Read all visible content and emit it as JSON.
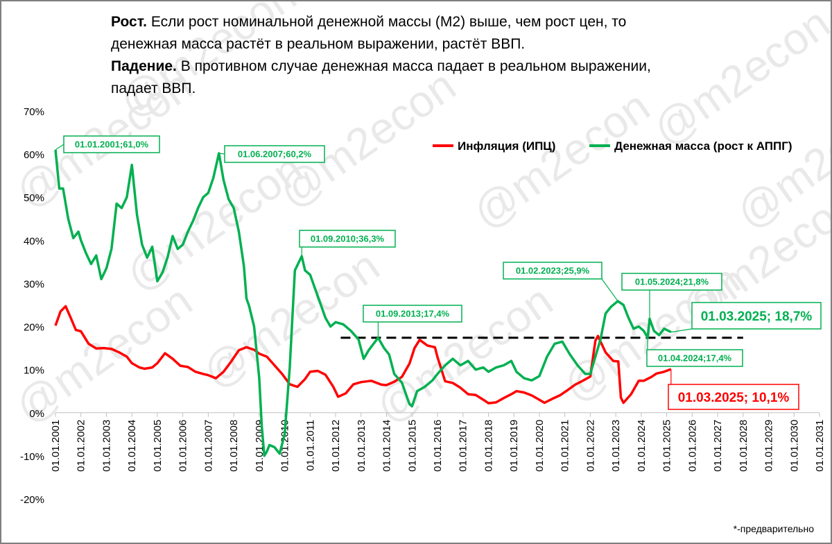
{
  "heading": {
    "line1_bold": "Рост.",
    "line1_text": " Если рост номинальной денежной массы (М2) выше, чем рост цен,  то",
    "line2_text": "денежная масса растёт в реальном выражении, растёт ВВП.",
    "line3_bold": "Падение.",
    "line3_text": " В противном случае денежная масса падает в реальном выражении,",
    "line4_text": "падает ВВП."
  },
  "footnote": "*-предварительно",
  "watermark": "@m2econ",
  "colors": {
    "inflation": "#ff0000",
    "money": "#00b050",
    "threshold": "#000000",
    "grid": "#d9d9d9"
  },
  "chart_data": {
    "type": "line",
    "y_ticks": [
      "70%",
      "60%",
      "50%",
      "40%",
      "30%",
      "20%",
      "10%",
      "0%",
      "-10%",
      "-20%"
    ],
    "y_tick_values": [
      70,
      60,
      50,
      40,
      30,
      20,
      10,
      0,
      -10,
      -20
    ],
    "ylim": [
      -20,
      70
    ],
    "xlim": [
      2001.0,
      2031.0
    ],
    "x_ticks": [
      "01.01.2001",
      "01.01.2002",
      "01.01.2003",
      "01.01.2004",
      "01.01.2005",
      "01.01.2006",
      "01.01.2007",
      "01.01.2008",
      "01.01.2009",
      "01.01.2010",
      "01.01.2011",
      "01.01.2012",
      "01.01.2013",
      "01.01.2014",
      "01.01.2015",
      "01.01.2016",
      "01.01.2017",
      "01.01.2018",
      "01.01.2019",
      "01.01.2020",
      "01.01.2021",
      "01.01.2022",
      "01.01.2023",
      "01.01.2024",
      "01.01.2025",
      "01.01.2026",
      "01.01.2027",
      "01.01.2028",
      "01.01.2029",
      "01.01.2030",
      "01.01.2031"
    ],
    "x_tick_values": [
      2001,
      2002,
      2003,
      2004,
      2005,
      2006,
      2007,
      2008,
      2009,
      2010,
      2011,
      2012,
      2013,
      2014,
      2015,
      2016,
      2017,
      2018,
      2019,
      2020,
      2021,
      2022,
      2023,
      2024,
      2025,
      2026,
      2027,
      2028,
      2029,
      2030,
      2031
    ],
    "legend": {
      "position": "top-right"
    },
    "series": [
      {
        "name": "Инфляция (ИПЦ)",
        "color": "#ff0000",
        "x": [
          2001.0,
          2001.2,
          2001.4,
          2001.6,
          2001.8,
          2002.0,
          2002.3,
          2002.6,
          2002.9,
          2003.2,
          2003.5,
          2003.8,
          2004.0,
          2004.3,
          2004.5,
          2004.8,
          2005.0,
          2005.3,
          2005.6,
          2005.9,
          2006.2,
          2006.5,
          2006.8,
          2007.0,
          2007.3,
          2007.6,
          2007.9,
          2008.2,
          2008.5,
          2008.8,
          2009.0,
          2009.3,
          2009.6,
          2009.9,
          2010.2,
          2010.5,
          2010.8,
          2011.0,
          2011.3,
          2011.6,
          2011.9,
          2012.1,
          2012.4,
          2012.7,
          2013.0,
          2013.4,
          2013.8,
          2014.0,
          2014.3,
          2014.6,
          2014.9,
          2015.1,
          2015.3,
          2015.6,
          2015.9,
          2016.0,
          2016.3,
          2016.6,
          2016.9,
          2017.2,
          2017.5,
          2017.8,
          2018.0,
          2018.3,
          2018.6,
          2018.9,
          2019.1,
          2019.4,
          2019.7,
          2020.0,
          2020.2,
          2020.5,
          2020.8,
          2021.1,
          2021.4,
          2021.7,
          2022.0,
          2022.2,
          2022.3,
          2022.6,
          2022.9,
          2023.1,
          2023.2,
          2023.3,
          2023.6,
          2023.9,
          2024.1,
          2024.4,
          2024.6,
          2024.9,
          2025.17
        ],
        "y": [
          20.2,
          23.5,
          24.7,
          22.0,
          19.2,
          18.9,
          16.0,
          14.9,
          15.0,
          14.8,
          14.0,
          13.0,
          11.5,
          10.5,
          10.2,
          10.5,
          11.5,
          13.8,
          12.5,
          10.9,
          10.6,
          9.5,
          9.0,
          8.7,
          8.0,
          9.5,
          11.9,
          14.5,
          15.2,
          14.6,
          13.7,
          13.0,
          11.0,
          9.0,
          6.6,
          6.0,
          7.8,
          9.5,
          9.7,
          8.8,
          6.1,
          3.7,
          4.5,
          6.6,
          7.1,
          7.4,
          6.5,
          6.4,
          7.2,
          8.3,
          11.4,
          15.0,
          16.9,
          15.6,
          15.2,
          12.9,
          7.3,
          6.9,
          5.8,
          4.3,
          4.1,
          3.0,
          2.2,
          2.4,
          3.4,
          4.3,
          5.0,
          4.7,
          4.0,
          3.0,
          2.3,
          3.2,
          4.0,
          5.2,
          6.5,
          7.4,
          8.4,
          16.7,
          17.8,
          14.0,
          12.0,
          11.9,
          3.5,
          2.3,
          4.3,
          7.4,
          7.4,
          8.3,
          9.1,
          9.5,
          10.1
        ]
      },
      {
        "name": "Денежная масса (рост к АППГ)",
        "color": "#00b050",
        "x": [
          2001.0,
          2001.15,
          2001.3,
          2001.5,
          2001.7,
          2001.9,
          2002.0,
          2002.2,
          2002.4,
          2002.6,
          2002.8,
          2003.0,
          2003.2,
          2003.4,
          2003.6,
          2003.8,
          2004.0,
          2004.2,
          2004.4,
          2004.6,
          2004.8,
          2005.0,
          2005.2,
          2005.4,
          2005.6,
          2005.8,
          2006.0,
          2006.2,
          2006.4,
          2006.6,
          2006.8,
          2007.0,
          2007.2,
          2007.42,
          2007.6,
          2007.8,
          2008.0,
          2008.2,
          2008.4,
          2008.5,
          2008.6,
          2008.8,
          2009.0,
          2009.1,
          2009.2,
          2009.3,
          2009.4,
          2009.6,
          2009.8,
          2010.0,
          2010.2,
          2010.4,
          2010.67,
          2010.8,
          2011.0,
          2011.3,
          2011.6,
          2011.8,
          2012.0,
          2012.3,
          2012.6,
          2012.9,
          2013.1,
          2013.3,
          2013.67,
          2013.9,
          2014.1,
          2014.3,
          2014.6,
          2014.9,
          2015.0,
          2015.2,
          2015.5,
          2015.8,
          2016.0,
          2016.3,
          2016.6,
          2016.9,
          2017.2,
          2017.5,
          2017.8,
          2018.0,
          2018.3,
          2018.6,
          2018.9,
          2019.1,
          2019.4,
          2019.7,
          2020.0,
          2020.3,
          2020.6,
          2020.9,
          2021.2,
          2021.5,
          2021.8,
          2022.0,
          2022.2,
          2022.4,
          2022.6,
          2022.8,
          2023.08,
          2023.3,
          2023.5,
          2023.7,
          2023.9,
          2024.1,
          2024.25,
          2024.33,
          2024.5,
          2024.7,
          2024.9,
          2025.17
        ],
        "y": [
          61.0,
          52.0,
          52.0,
          45.0,
          40.5,
          42.0,
          40.0,
          37.0,
          34.5,
          36.5,
          31.0,
          33.5,
          38.0,
          48.5,
          47.5,
          50.0,
          57.5,
          46.0,
          39.0,
          36.0,
          38.5,
          30.5,
          32.5,
          36.0,
          41.0,
          38.0,
          39.0,
          42.0,
          44.5,
          47.5,
          50.0,
          51.0,
          54.5,
          60.2,
          54.0,
          49.5,
          47.5,
          42.0,
          34.0,
          26.5,
          24.8,
          20.0,
          8.0,
          -3.0,
          -10.0,
          -9.0,
          -7.5,
          -8.0,
          -9.5,
          -5.0,
          10.5,
          33.0,
          36.3,
          33.0,
          32.0,
          27.0,
          22.0,
          20.0,
          21.0,
          20.5,
          19.0,
          17.0,
          12.5,
          14.5,
          17.4,
          15.0,
          13.5,
          9.0,
          7.0,
          2.0,
          1.5,
          5.0,
          6.0,
          7.5,
          9.0,
          11.0,
          12.5,
          11.0,
          12.0,
          10.0,
          10.5,
          9.5,
          10.5,
          11.0,
          12.0,
          9.5,
          8.0,
          7.5,
          8.5,
          13.0,
          16.0,
          16.5,
          13.5,
          11.0,
          9.0,
          9.0,
          13.0,
          17.0,
          23.0,
          24.5,
          25.9,
          25.0,
          22.0,
          19.5,
          20.0,
          19.0,
          17.4,
          21.8,
          19.0,
          18.0,
          19.5,
          18.7
        ]
      }
    ],
    "threshold": {
      "y": 17.4,
      "x_start": 2012.2,
      "x_end": 2028.0
    },
    "annotations": [
      {
        "text": "01.01.2001;61,0%",
        "series": "money",
        "x": 2001.0,
        "y": 61.0
      },
      {
        "text": "01.06.2007;60,2%",
        "series": "money",
        "x": 2007.42,
        "y": 60.2
      },
      {
        "text": "01.09.2010;36,3%",
        "series": "money",
        "x": 2010.67,
        "y": 36.3
      },
      {
        "text": "01.09.2013;17,4%",
        "series": "money",
        "x": 2013.67,
        "y": 17.4
      },
      {
        "text": "01.02.2023;25,9%",
        "series": "money",
        "x": 2023.08,
        "y": 25.9
      },
      {
        "text": "01.05.2024;21,8%",
        "series": "money",
        "x": 2024.33,
        "y": 21.8
      },
      {
        "text": "01.04.2024;17,4%",
        "series": "money",
        "x": 2024.25,
        "y": 17.4
      },
      {
        "text": "01.03.2025; 18,7%",
        "series": "money",
        "x": 2025.17,
        "y": 18.7
      },
      {
        "text": "01.03.2025; 10,1%",
        "series": "inflation",
        "x": 2025.17,
        "y": 10.1
      }
    ]
  }
}
